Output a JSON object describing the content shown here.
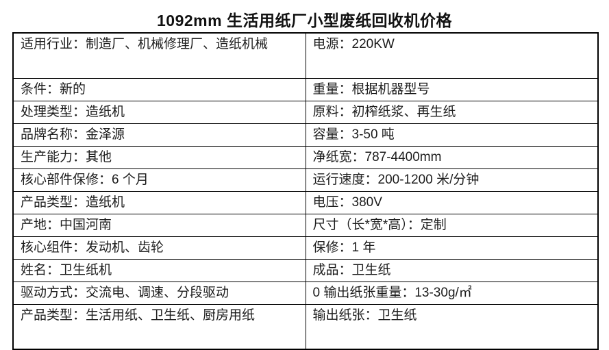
{
  "title": "1092mm 生活用纸厂小型废纸回收机价格",
  "colors": {
    "background": "#ffffff",
    "text": "#1c1c1c",
    "border": "#000000"
  },
  "table": {
    "rows": [
      {
        "left": "适用行业：制造厂、机械修理厂、造纸机械",
        "right": "电源：220KW"
      },
      {
        "left": "条件：新的",
        "right": "重量：根据机器型号"
      },
      {
        "left": "处理类型：造纸机",
        "right": "原料：初榨纸浆、再生纸"
      },
      {
        "left": "品牌名称：金泽源",
        "right": "容量：3-50 吨"
      },
      {
        "left": "生产能力：其他",
        "right": "净纸宽：787-4400mm"
      },
      {
        "left": "核心部件保修：6 个月",
        "right": "运行速度：200-1200 米/分钟"
      },
      {
        "left": "产品类型：造纸机",
        "right": "电压：380V"
      },
      {
        "left": "产地：中国河南",
        "right": "尺寸（长*宽*高）：定制"
      },
      {
        "left": "核心组件：发动机、齿轮",
        "right": "保修：1 年"
      },
      {
        "left": "姓名：卫生纸机",
        "right": "成品：卫生纸"
      },
      {
        "left": "驱动方式：交流电、调速、分段驱动",
        "right": "0 输出纸张重量：13-30g/㎡"
      },
      {
        "left": "产品类型：生活用纸、卫生纸、厨房用纸",
        "right": "输出纸张：卫生纸"
      }
    ]
  }
}
